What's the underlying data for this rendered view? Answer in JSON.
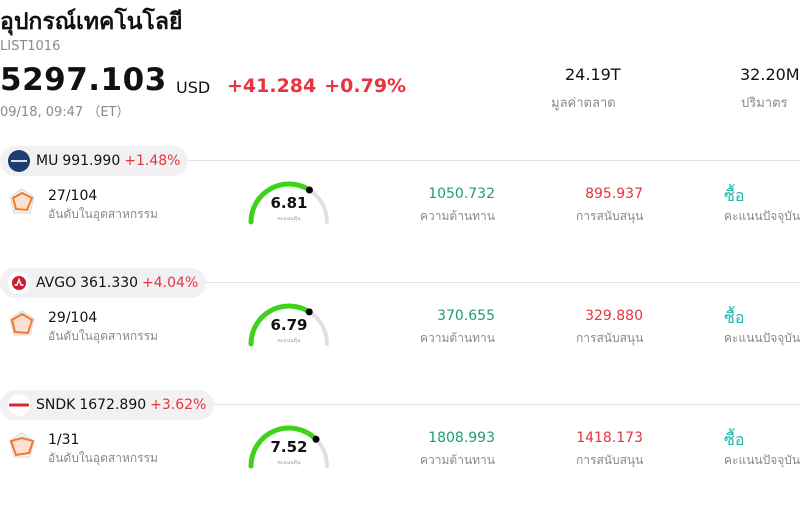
{
  "header": {
    "title": "อุปกรณ์เทคโนโลยี",
    "code": "LIST1016",
    "price": "5297.103",
    "currency": "USD",
    "change": "+41.284",
    "change_pct": "+0.79%",
    "time": "09/18, 09:47 （ET）",
    "market_cap_value": "24.19T",
    "market_cap_label": "มูลค่าตลาด",
    "volume_value": "32.20M",
    "volume_label": "ปริมาตร"
  },
  "colors": {
    "up": "#e8333f",
    "resistance": "#1f9e6b",
    "buy": "#19b8ae",
    "gauge_green": "#3ed21b",
    "gauge_track": "#dfdfe8"
  },
  "stocks": [
    {
      "symbol": "MU",
      "price": "991.990",
      "change_pct": "+1.48%",
      "logo_icon": "micron-logo-icon",
      "rank": "27/104",
      "rank_label": "อันดับในอุตสาหกรรม",
      "score": 6.81,
      "score_text": "6.81",
      "score_label": "คะแนนหุ้น",
      "resistance": "1050.732",
      "resistance_label": "ความต้านทาน",
      "support": "895.937",
      "support_label": "การสนับสนุน",
      "action": "ซื้อ",
      "action_label": "คะแนนปัจจุบัน"
    },
    {
      "symbol": "AVGO",
      "price": "361.330",
      "change_pct": "+4.04%",
      "logo_icon": "broadcom-logo-icon",
      "rank": "29/104",
      "rank_label": "อันดับในอุตสาหกรรม",
      "score": 6.79,
      "score_text": "6.79",
      "score_label": "คะแนนหุ้น",
      "resistance": "370.655",
      "resistance_label": "ความต้านทาน",
      "support": "329.880",
      "support_label": "การสนับสนุน",
      "action": "ซื้อ",
      "action_label": "คะแนนปัจจุบัน"
    },
    {
      "symbol": "SNDK",
      "price": "1672.890",
      "change_pct": "+3.62%",
      "logo_icon": "sandisk-logo-icon",
      "rank": "1/31",
      "rank_label": "อันดับในอุตสาหกรรม",
      "score": 7.52,
      "score_text": "7.52",
      "score_label": "คะแนนหุ้น",
      "resistance": "1808.993",
      "resistance_label": "ความต้านทาน",
      "support": "1418.173",
      "support_label": "การสนับสนุน",
      "action": "ซื้อ",
      "action_label": "คะแนนปัจจุบัน"
    }
  ]
}
